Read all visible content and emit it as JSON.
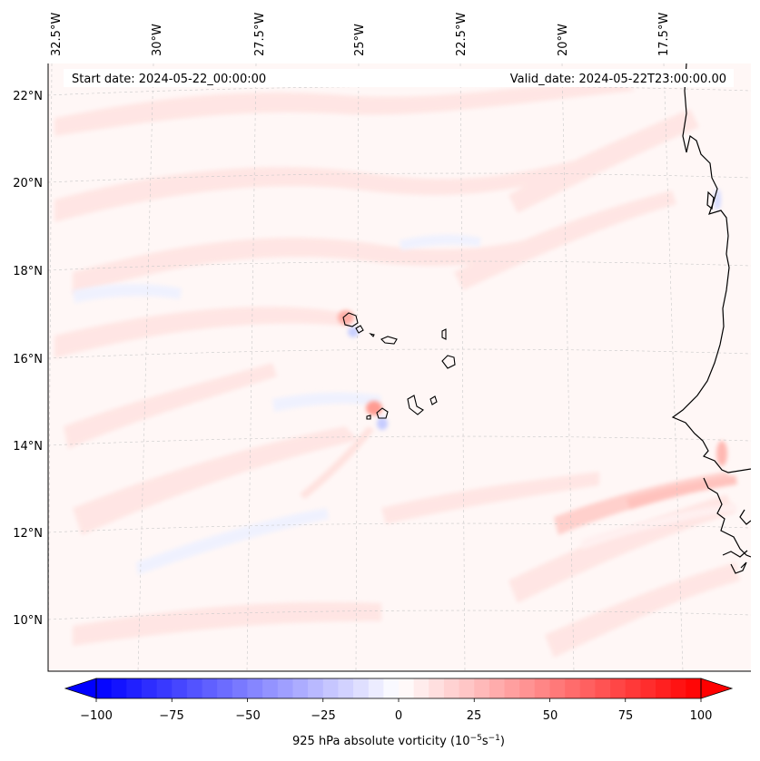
{
  "header": {
    "start_label": "Start date: 2024-05-22_00:00:00",
    "valid_label": "Valid_date: 2024-05-22T23:00:00.00"
  },
  "map": {
    "lon_labels": [
      "32.5°W",
      "30°W",
      "27.5°W",
      "25°W",
      "22.5°W",
      "20°W",
      "17.5°W"
    ],
    "lat_labels": [
      "22°N",
      "20°N",
      "18°N",
      "16°N",
      "14°N",
      "12°N",
      "10°N"
    ],
    "gridlines": true
  },
  "colorbar": {
    "ticks": [
      "−100",
      "−75",
      "−50",
      "−25",
      "0",
      "25",
      "50",
      "75",
      "100"
    ],
    "vmin": -100,
    "vmax": 100,
    "levels": 40,
    "extend": "both",
    "label_main": "925 hPa absolute vorticity (10",
    "label_sup1": "−5",
    "label_mid": "s",
    "label_sup2": "−1",
    "label_end": ")",
    "colors": {
      "negative": "#0000ff",
      "zero": "#ffffff",
      "positive": "#ff0000"
    }
  }
}
